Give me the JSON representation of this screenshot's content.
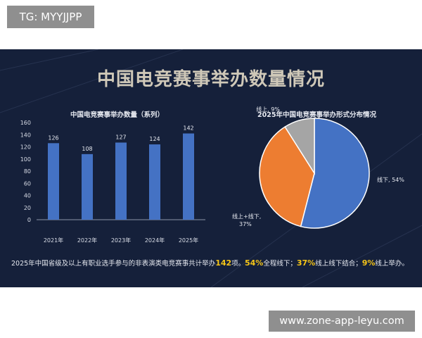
{
  "watermark": {
    "tag": "TG: MYYJJPP",
    "url": "www.zone-app-leyu.com"
  },
  "slide": {
    "title": "中国电竞赛事举办数量情况",
    "summary_left": {
      "before": "2025年中国省级及以上有职业选手参与的非表演类电竞赛事共计举办",
      "highlight": "142",
      "after": "项。"
    },
    "summary_right": [
      {
        "highlight": "54%",
        "text": "全程线下；"
      },
      {
        "highlight": "37%",
        "text": "线上线下结合；"
      },
      {
        "highlight": "9%",
        "text": "线上举办。"
      }
    ]
  },
  "colors": {
    "bar": "#4472c4",
    "pie_offline": "#4472c4",
    "pie_hybrid": "#ed7d31",
    "pie_online": "#a5a5a5",
    "background": "#15203a",
    "highlight": "#f5c518"
  },
  "chart_data": [
    {
      "type": "bar",
      "title": "中国电竞赛事举办数量（系列）",
      "categories": [
        "2021年",
        "2022年",
        "2023年",
        "2024年",
        "2025年"
      ],
      "values": [
        126,
        108,
        127,
        124,
        142
      ],
      "ylim": [
        0,
        160
      ],
      "yticks": [
        0,
        20,
        40,
        60,
        80,
        100,
        120,
        140,
        160
      ],
      "xlabel": "",
      "ylabel": "",
      "grid": false
    },
    {
      "type": "pie",
      "title": "2025年中国电竞赛事举办形式分布情况",
      "slices": [
        {
          "label": "线下",
          "value": 54,
          "text": "线下, 54%",
          "color": "#4472c4"
        },
        {
          "label": "线上+线下",
          "value": 37,
          "text_lines": [
            "线上+线下,",
            "37%"
          ],
          "color": "#ed7d31"
        },
        {
          "label": "线上",
          "value": 9,
          "text": "线上, 9%",
          "color": "#a5a5a5"
        }
      ]
    }
  ]
}
